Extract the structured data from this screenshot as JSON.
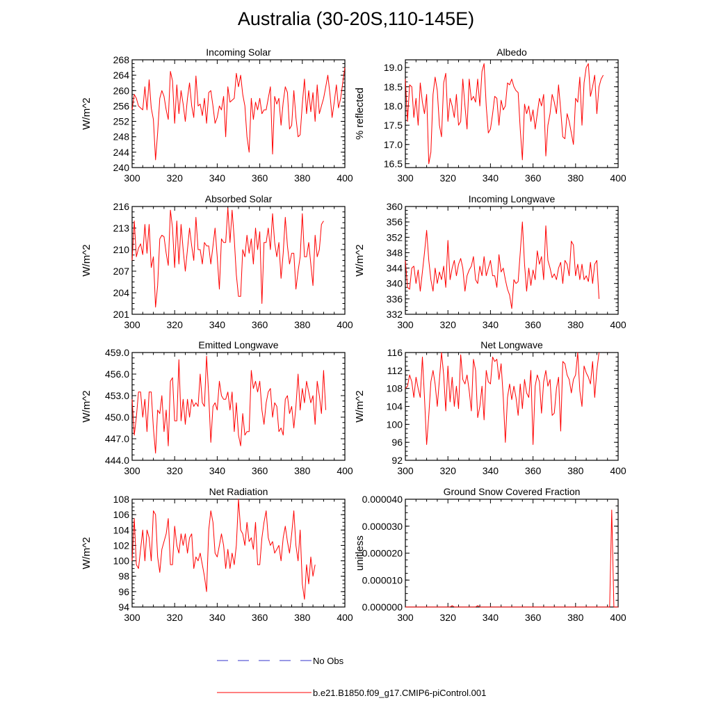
{
  "title": "Australia (30-20S,110-145E)",
  "colors": {
    "model": "#ff0000",
    "obs": "#3333cc",
    "axis": "#000000"
  },
  "legend": [
    {
      "label": "No Obs",
      "style": "dashed",
      "color": "#3333cc"
    },
    {
      "label": "b.e21.B1850.f09_g17.CMIP6-piControl.001",
      "style": "solid",
      "color": "#ff0000"
    }
  ],
  "chart_data": [
    {
      "type": "line",
      "title": "Incoming Solar",
      "xlabel": "",
      "ylabel": "W/m^2",
      "xlim": [
        300,
        400
      ],
      "ylim": [
        240,
        268
      ],
      "xticks": [
        300,
        320,
        340,
        360,
        380,
        400
      ],
      "yticks": [
        "240",
        "244",
        "248",
        "252",
        "256",
        "260",
        "264",
        "268"
      ],
      "x_start": 300,
      "series": [
        {
          "name": "b.e21.B1850.f09_g17.CMIP6-piControl.001",
          "values": [
            255.0,
            259.0,
            258.0,
            256.0,
            255.5,
            255.0,
            261.0,
            255.0,
            262.8,
            255.5,
            252.5,
            242.0,
            249.0,
            258.0,
            260.0,
            258.5,
            255.0,
            252.5,
            265.0,
            262.5,
            251.5,
            261.5,
            254.0,
            260.0,
            256.5,
            252.0,
            258.0,
            262.0,
            256.0,
            253.0,
            263.8,
            256.0,
            256.5,
            253.5,
            258.0,
            251.5,
            259.5,
            260.0,
            256.0,
            251.5,
            253.0,
            256.0,
            255.0,
            258.5,
            248.0,
            261.0,
            257.0,
            257.5,
            258.0,
            264.5,
            261.0,
            264.0,
            259.0,
            256.0,
            248.0,
            244.0,
            258.0,
            252.5,
            257.0,
            255.0,
            258.0,
            254.0,
            255.0,
            255.0,
            258.0,
            261.0,
            243.5,
            258.5,
            256.5,
            258.0,
            251.0,
            257.0,
            261.0,
            259.5,
            250.0,
            251.0,
            260.0,
            253.0,
            248.0,
            248.5,
            256.5,
            263.0,
            254.0,
            260.0,
            254.5,
            259.5,
            252.0,
            261.5,
            254.0,
            256.0,
            258.0,
            261.0,
            264.0,
            259.0,
            253.0,
            257.0,
            261.5,
            255.5,
            258.0,
            262.0,
            266.0
          ]
        }
      ]
    },
    {
      "type": "line",
      "title": "Albedo",
      "xlabel": "",
      "ylabel": "% reflected",
      "xlim": [
        300,
        400
      ],
      "ylim": [
        16.4,
        19.2
      ],
      "xticks": [
        300,
        320,
        340,
        360,
        380,
        400
      ],
      "yticks": [
        "16.5",
        "17.0",
        "17.5",
        "18.0",
        "18.5",
        "19.0"
      ],
      "x_start": 300,
      "series": [
        {
          "name": "b.e21.B1850.f09_g17.CMIP6-piControl.001",
          "values": [
            18.7,
            17.6,
            18.55,
            18.5,
            17.7,
            18.2,
            17.5,
            18.6,
            18.1,
            17.8,
            18.3,
            16.5,
            16.8,
            18.3,
            18.75,
            18.4,
            17.5,
            17.2,
            18.6,
            18.85,
            17.6,
            18.2,
            18.0,
            17.7,
            18.3,
            17.5,
            17.6,
            18.7,
            18.0,
            17.4,
            18.7,
            18.15,
            18.25,
            18.1,
            18.7,
            18.0,
            18.9,
            19.1,
            18.0,
            17.3,
            17.4,
            17.8,
            18.25,
            18.2,
            17.5,
            18.15,
            17.9,
            18.0,
            18.6,
            18.55,
            18.7,
            18.5,
            18.4,
            18.35,
            17.4,
            16.6,
            18.05,
            17.8,
            18.0,
            17.6,
            17.9,
            17.4,
            17.8,
            18.2,
            18.0,
            18.3,
            16.7,
            17.5,
            17.8,
            18.3,
            18.1,
            17.8,
            18.55,
            17.9,
            17.2,
            17.15,
            17.8,
            17.6,
            17.3,
            17.0,
            18.2,
            18.1,
            18.75,
            17.5,
            18.6,
            19.0,
            19.1,
            18.25,
            18.5,
            18.8,
            17.8,
            18.5,
            18.7,
            18.8
          ]
        }
      ]
    },
    {
      "type": "line",
      "title": "Absorbed Solar",
      "xlabel": "",
      "ylabel": "W/m^2",
      "xlim": [
        300,
        400
      ],
      "ylim": [
        201,
        216
      ],
      "xticks": [
        300,
        320,
        340,
        360,
        380,
        400
      ],
      "yticks": [
        "201",
        "204",
        "207",
        "210",
        "213",
        "216"
      ],
      "x_start": 300,
      "series": [
        {
          "name": "b.e21.B1850.f09_g17.CMIP6-piControl.001",
          "values": [
            208.5,
            214.0,
            209.0,
            210.2,
            210.8,
            209.3,
            213.5,
            209.5,
            213.5,
            207.5,
            209.0,
            202.0,
            205.0,
            211.5,
            212.0,
            211.8,
            209.5,
            207.8,
            215.5,
            213.0,
            207.5,
            214.0,
            208.0,
            213.5,
            210.0,
            207.0,
            210.0,
            213.0,
            210.5,
            208.5,
            214.5,
            210.0,
            210.0,
            208.0,
            211.0,
            210.5,
            210.5,
            208.0,
            210.5,
            213.0,
            209.0,
            204.5,
            211.5,
            211.0,
            211.0,
            215.8,
            211.0,
            215.5,
            211.5,
            206.5,
            203.5,
            203.5,
            210.0,
            209.0,
            212.0,
            209.5,
            211.5,
            208.0,
            213.0,
            210.0,
            212.5,
            202.5,
            211.0,
            211.0,
            213.0,
            210.0,
            215.0,
            211.0,
            209.0,
            211.0,
            206.0,
            209.5,
            214.5,
            210.5,
            208.0,
            209.5,
            209.5,
            204.5,
            207.0,
            209.0,
            215.0,
            209.0,
            209.0,
            211.0,
            208.0,
            205.0,
            212.0,
            209.0,
            210.0,
            213.5,
            214.0
          ]
        }
      ]
    },
    {
      "type": "line",
      "title": "Incoming Longwave",
      "xlabel": "",
      "ylabel": "W/m^2",
      "xlim": [
        300,
        400
      ],
      "ylim": [
        332,
        360
      ],
      "xticks": [
        300,
        320,
        340,
        360,
        380,
        400
      ],
      "yticks": [
        "332",
        "336",
        "340",
        "344",
        "348",
        "352",
        "356",
        "360"
      ],
      "x_start": 300,
      "series": [
        {
          "name": "b.e21.B1850.f09_g17.CMIP6-piControl.001",
          "values": [
            346.0,
            339.0,
            338.5,
            344.0,
            344.5,
            340.0,
            343.5,
            338.0,
            343.0,
            348.0,
            353.8,
            346.0,
            341.0,
            338.0,
            344.0,
            340.0,
            343.0,
            341.0,
            344.5,
            339.0,
            351.2,
            341.0,
            344.0,
            346.0,
            342.0,
            345.0,
            346.5,
            344.0,
            338.0,
            342.0,
            343.5,
            344.5,
            347.0,
            341.0,
            340.0,
            344.5,
            342.0,
            347.0,
            342.0,
            344.0,
            346.0,
            342.0,
            342.0,
            339.0,
            347.5,
            343.0,
            344.0,
            341.0,
            338.5,
            337.0,
            333.5,
            341.0,
            340.0,
            340.5,
            348.0,
            356.0,
            345.0,
            338.0,
            344.0,
            339.5,
            343.5,
            341.0,
            348.5,
            345.0,
            347.0,
            341.0,
            355.0,
            346.0,
            344.0,
            341.5,
            342.5,
            341.0,
            344.0,
            345.5,
            340.0,
            346.0,
            345.0,
            342.0,
            351.0,
            350.0,
            342.0,
            345.0,
            341.0,
            345.0,
            341.0,
            342.0,
            340.5,
            345.5,
            340.0,
            345.0,
            346.0,
            336.0
          ]
        }
      ]
    },
    {
      "type": "line",
      "title": "Emitted Longwave",
      "xlabel": "",
      "ylabel": "W/m^2",
      "xlim": [
        300,
        400
      ],
      "ylim": [
        444,
        459
      ],
      "xticks": [
        300,
        320,
        340,
        360,
        380,
        400
      ],
      "yticks": [
        "444.0",
        "447.0",
        "450.0",
        "453.0",
        "456.0",
        "459.0"
      ],
      "x_start": 300,
      "series": [
        {
          "name": "b.e21.B1850.f09_g17.CMIP6-piControl.001",
          "values": [
            452.5,
            447.5,
            450.0,
            453.5,
            453.5,
            450.0,
            452.5,
            448.0,
            453.5,
            453.5,
            448.5,
            445.0,
            451.0,
            450.5,
            453.0,
            448.0,
            451.0,
            446.0,
            455.0,
            455.5,
            449.5,
            449.5,
            458.0,
            449.5,
            452.5,
            449.0,
            452.5,
            450.0,
            452.5,
            451.5,
            452.0,
            451.5,
            456.0,
            452.0,
            451.5,
            458.5,
            453.0,
            446.5,
            451.5,
            452.0,
            451.0,
            455.0,
            453.0,
            452.5,
            452.5,
            453.5,
            451.0,
            453.5,
            448.0,
            452.0,
            447.5,
            446.0,
            450.5,
            447.5,
            448.0,
            448.0,
            456.5,
            454.0,
            455.0,
            453.5,
            455.0,
            451.0,
            449.0,
            452.0,
            453.5,
            454.0,
            450.0,
            452.0,
            451.5,
            448.0,
            448.5,
            447.5,
            452.5,
            453.0,
            450.5,
            451.5,
            448.5,
            451.5,
            456.0,
            451.0,
            454.0,
            452.0,
            455.0,
            453.5,
            452.0,
            453.0,
            449.0,
            455.0,
            453.0,
            450.5,
            456.5,
            451.0
          ]
        }
      ]
    },
    {
      "type": "line",
      "title": "Net Longwave",
      "xlabel": "",
      "ylabel": "W/m^2",
      "xlim": [
        300,
        400
      ],
      "ylim": [
        92,
        116
      ],
      "xticks": [
        300,
        320,
        340,
        360,
        380,
        400
      ],
      "yticks": [
        "92",
        "96",
        "100",
        "104",
        "108",
        "112",
        "116"
      ],
      "x_start": 300,
      "series": [
        {
          "name": "b.e21.B1850.f09_g17.CMIP6-piControl.001",
          "values": [
            108.0,
            108.5,
            111.0,
            109.5,
            106.0,
            110.5,
            108.0,
            106.0,
            115.0,
            106.0,
            95.5,
            102.0,
            109.5,
            112.0,
            109.0,
            104.0,
            110.0,
            116.0,
            111.0,
            103.0,
            113.0,
            105.0,
            110.5,
            104.0,
            108.5,
            103.5,
            115.5,
            110.0,
            109.0,
            111.0,
            107.5,
            103.0,
            114.5,
            112.0,
            101.5,
            104.0,
            108.5,
            101.0,
            112.0,
            109.5,
            109.0,
            115.0,
            114.0,
            114.5,
            110.0,
            113.5,
            106.0,
            96.0,
            106.0,
            109.0,
            105.5,
            108.5,
            106.0,
            102.0,
            109.0,
            103.5,
            110.0,
            107.0,
            106.0,
            112.0,
            95.5,
            108.5,
            111.0,
            109.5,
            102.5,
            109.5,
            112.0,
            108.5,
            110.0,
            102.0,
            102.5,
            108.0,
            110.5,
            98.5,
            114.0,
            113.5,
            111.0,
            110.0,
            107.0,
            110.0,
            111.0,
            116.0,
            107.5,
            104.0,
            113.0,
            111.5,
            110.5,
            109.0,
            114.0,
            106.0,
            112.0,
            116.0
          ]
        }
      ]
    },
    {
      "type": "line",
      "title": "Net Radiation",
      "xlabel": "",
      "ylabel": "W/m^2",
      "xlim": [
        300,
        400
      ],
      "ylim": [
        94,
        108
      ],
      "xticks": [
        300,
        320,
        340,
        360,
        380,
        400
      ],
      "yticks": [
        "94",
        "96",
        "98",
        "100",
        "102",
        "104",
        "106",
        "108"
      ],
      "x_start": 300,
      "series": [
        {
          "name": "b.e21.B1850.f09_g17.CMIP6-piControl.001",
          "values": [
            100.0,
            105.5,
            99.5,
            99.0,
            101.5,
            104.0,
            100.0,
            104.0,
            103.0,
            100.0,
            106.5,
            106.0,
            100.5,
            98.5,
            101.5,
            102.5,
            103.5,
            105.5,
            99.5,
            99.5,
            104.5,
            102.0,
            101.0,
            103.5,
            102.0,
            103.5,
            101.0,
            103.0,
            103.5,
            99.0,
            100.5,
            100.0,
            101.0,
            99.5,
            98.0,
            96.0,
            104.0,
            106.5,
            105.0,
            101.0,
            100.5,
            102.0,
            103.5,
            102.0,
            99.0,
            101.5,
            99.0,
            101.0,
            99.5,
            102.0,
            108.0,
            104.0,
            103.5,
            102.0,
            105.0,
            102.5,
            103.0,
            101.5,
            105.0,
            99.5,
            99.5,
            103.0,
            105.0,
            106.5,
            103.0,
            102.0,
            102.5,
            101.0,
            101.5,
            102.0,
            100.0,
            103.0,
            104.5,
            102.5,
            101.0,
            103.5,
            106.5,
            102.0,
            100.0,
            104.0,
            97.0,
            95.0,
            99.5,
            97.0,
            100.5,
            98.0,
            99.5
          ]
        }
      ]
    },
    {
      "type": "line",
      "title": "Ground Snow Covered Fraction",
      "xlabel": "",
      "ylabel": "unitless",
      "xlim": [
        300,
        400
      ],
      "ylim": [
        0,
        4e-05
      ],
      "xticks": [
        300,
        320,
        340,
        360,
        380,
        400
      ],
      "yticks": [
        "0.000000",
        "0.000010",
        "0.000020",
        "0.000030",
        "0.000040"
      ],
      "x_start": 300,
      "series": [
        {
          "name": "b.e21.B1850.f09_g17.CMIP6-piControl.001",
          "values": [
            0,
            0,
            0,
            0,
            0,
            0,
            0,
            0,
            0,
            0,
            0,
            0,
            0,
            0,
            0,
            0,
            0,
            0,
            0,
            0,
            0,
            0,
            5e-07,
            0,
            0,
            0,
            0,
            0,
            0,
            0,
            0,
            0,
            0,
            0,
            5e-07,
            0,
            0,
            0,
            0,
            0,
            0,
            0,
            0,
            0,
            0,
            0,
            0,
            0,
            0,
            0,
            0,
            0,
            0,
            0,
            0,
            0,
            0,
            0,
            0,
            0,
            0,
            0,
            0,
            0,
            0,
            0,
            0,
            0,
            0,
            0,
            0,
            0,
            0,
            0,
            0,
            0,
            0,
            0,
            0,
            0,
            0,
            0,
            0,
            0,
            0,
            0,
            0,
            0,
            0,
            0,
            0,
            0,
            0,
            0,
            0,
            0,
            0,
            3.6e-05,
            0,
            0,
            0
          ]
        }
      ]
    }
  ]
}
